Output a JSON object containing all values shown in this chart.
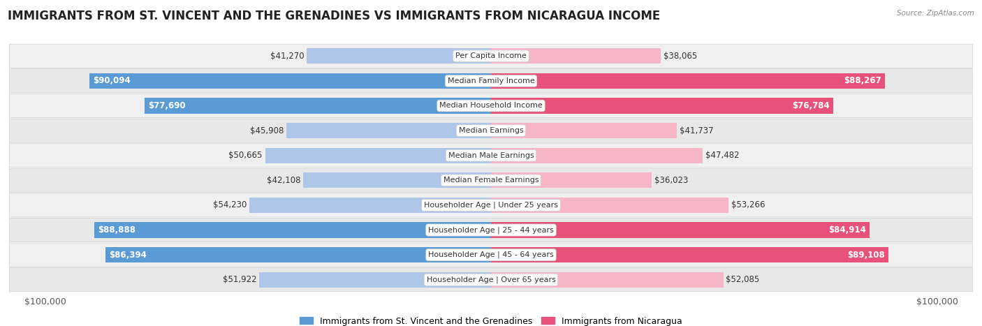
{
  "title": "IMMIGRANTS FROM ST. VINCENT AND THE GRENADINES VS IMMIGRANTS FROM NICARAGUA INCOME",
  "source": "Source: ZipAtlas.com",
  "categories": [
    "Per Capita Income",
    "Median Family Income",
    "Median Household Income",
    "Median Earnings",
    "Median Male Earnings",
    "Median Female Earnings",
    "Householder Age | Under 25 years",
    "Householder Age | 25 - 44 years",
    "Householder Age | 45 - 64 years",
    "Householder Age | Over 65 years"
  ],
  "left_values": [
    41270,
    90094,
    77690,
    45908,
    50665,
    42108,
    54230,
    88888,
    86394,
    51922
  ],
  "right_values": [
    38065,
    88267,
    76784,
    41737,
    47482,
    36023,
    53266,
    84914,
    89108,
    52085
  ],
  "left_labels": [
    "$41,270",
    "$90,094",
    "$77,690",
    "$45,908",
    "$50,665",
    "$42,108",
    "$54,230",
    "$88,888",
    "$86,394",
    "$51,922"
  ],
  "right_labels": [
    "$38,065",
    "$88,267",
    "$76,784",
    "$41,737",
    "$47,482",
    "$36,023",
    "$53,266",
    "$84,914",
    "$89,108",
    "$52,085"
  ],
  "left_color_light": "#aec6e8",
  "left_color_dark": "#5b9bd5",
  "right_color_light": "#f7b6c8",
  "right_color_dark": "#e8527a",
  "left_legend": "Immigrants from St. Vincent and the Grenadines",
  "right_legend": "Immigrants from Nicaragua",
  "max_value": 100000,
  "bar_height": 0.62,
  "title_fontsize": 12,
  "label_fontsize": 8.5,
  "axis_label_fontsize": 9,
  "dark_threshold": 70000
}
